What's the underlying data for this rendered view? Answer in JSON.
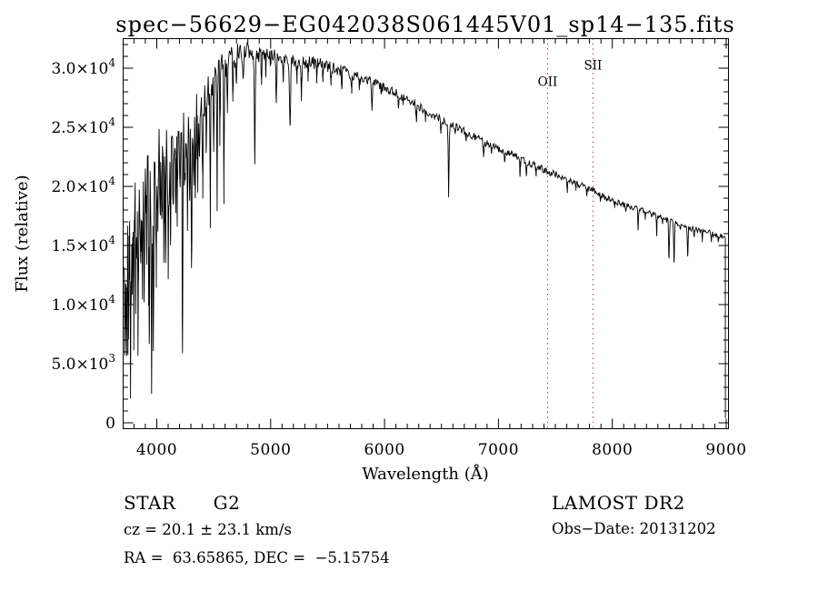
{
  "title": "spec−56629−EG042038S061445V01_sp14−135.fits",
  "annotations": {
    "object_class": "STAR      G2",
    "survey": "LAMOST DR2",
    "cz": "cz = 20.1 ± 23.1 km/s",
    "obs_date": "Obs−Date: 20131202",
    "ra_dec": "RA =  63.65865, DEC =  −5.15754"
  },
  "chart_data": {
    "type": "line",
    "title": "spec−56629−EG042038S061445V01_sp14−135.fits",
    "xlabel": "Wavelength (Å)",
    "ylabel": "Flux (relative)",
    "xlim": [
      3705,
      9020
    ],
    "ylim": [
      -500,
      32500
    ],
    "grid": false,
    "line_color": "#000000",
    "frame_color": "#000000",
    "background": "#ffffff",
    "marker_color": "#8f2222",
    "x_ticks": {
      "major": [
        {
          "value": 4000,
          "label": "4000"
        },
        {
          "value": 5000,
          "label": "5000"
        },
        {
          "value": 6000,
          "label": "6000"
        },
        {
          "value": 7000,
          "label": "7000"
        },
        {
          "value": 8000,
          "label": "8000"
        },
        {
          "value": 9000,
          "label": "9000"
        }
      ],
      "minor_step": 100
    },
    "y_ticks": {
      "major": [
        {
          "value": 0,
          "label": "0"
        },
        {
          "value": 5000,
          "mantissa": "5.0×10",
          "exponent": "3"
        },
        {
          "value": 10000,
          "mantissa": "1.0×10",
          "exponent": "4"
        },
        {
          "value": 15000,
          "mantissa": "1.5×10",
          "exponent": "4"
        },
        {
          "value": 20000,
          "mantissa": "2.0×10",
          "exponent": "4"
        },
        {
          "value": 25000,
          "mantissa": "2.5×10",
          "exponent": "4"
        },
        {
          "value": 30000,
          "mantissa": "3.0×10",
          "exponent": "4"
        }
      ],
      "minor_step": 1000
    },
    "marker_lines": [
      {
        "label": "OII",
        "wavelength": 7432,
        "label_flux": 28500
      },
      {
        "label": "SII",
        "wavelength": 7830,
        "label_flux": 29900
      }
    ],
    "continuum": [
      [
        3714,
        14500
      ],
      [
        3760,
        17500
      ],
      [
        3800,
        19000
      ],
      [
        3860,
        20500
      ],
      [
        3920,
        21500
      ],
      [
        3990,
        22500
      ],
      [
        4080,
        24000
      ],
      [
        4160,
        25200
      ],
      [
        4250,
        25800
      ],
      [
        4330,
        26300
      ],
      [
        4420,
        27600
      ],
      [
        4500,
        29200
      ],
      [
        4570,
        30200
      ],
      [
        4650,
        30800
      ],
      [
        4730,
        31200
      ],
      [
        4800,
        31500
      ],
      [
        4870,
        31300
      ],
      [
        4950,
        31200
      ],
      [
        5050,
        31000
      ],
      [
        5150,
        30800
      ],
      [
        5250,
        30400
      ],
      [
        5350,
        30500
      ],
      [
        5450,
        30300
      ],
      [
        5550,
        30000
      ],
      [
        5650,
        29700
      ],
      [
        5750,
        29300
      ],
      [
        5850,
        29000
      ],
      [
        5950,
        28600
      ],
      [
        6050,
        28100
      ],
      [
        6150,
        27600
      ],
      [
        6250,
        27100
      ],
      [
        6350,
        26500
      ],
      [
        6450,
        25900
      ],
      [
        6550,
        25400
      ],
      [
        6650,
        24900
      ],
      [
        6750,
        24400
      ],
      [
        6850,
        23900
      ],
      [
        6950,
        23400
      ],
      [
        7050,
        23000
      ],
      [
        7150,
        22600
      ],
      [
        7250,
        22100
      ],
      [
        7350,
        21600
      ],
      [
        7450,
        21200
      ],
      [
        7550,
        20800
      ],
      [
        7650,
        20400
      ],
      [
        7750,
        20000
      ],
      [
        7850,
        19600
      ],
      [
        7950,
        19000
      ],
      [
        8050,
        18600
      ],
      [
        8150,
        18300
      ],
      [
        8250,
        18000
      ],
      [
        8350,
        17600
      ],
      [
        8450,
        17300
      ],
      [
        8550,
        16900
      ],
      [
        8650,
        16600
      ],
      [
        8750,
        16300
      ],
      [
        8850,
        16100
      ],
      [
        8950,
        15800
      ],
      [
        8993,
        15600
      ]
    ],
    "absorption_lines": [
      [
        3722,
        8000,
        6
      ],
      [
        3737,
        9800,
        5
      ],
      [
        3752,
        10500,
        5
      ],
      [
        3770,
        8600,
        5
      ],
      [
        3785,
        12000,
        4
      ],
      [
        3798,
        10500,
        5
      ],
      [
        3815,
        12500,
        4
      ],
      [
        3835,
        9800,
        5
      ],
      [
        3860,
        11500,
        4
      ],
      [
        3875,
        14000,
        4
      ],
      [
        3889,
        10200,
        5
      ],
      [
        3912,
        13500,
        4
      ],
      [
        3934,
        7600,
        5
      ],
      [
        3955,
        5300,
        5
      ],
      [
        3970,
        9200,
        5
      ],
      [
        3995,
        14500,
        4
      ],
      [
        4010,
        15200,
        4
      ],
      [
        4030,
        16500,
        4
      ],
      [
        4045,
        16200,
        4
      ],
      [
        4063,
        15800,
        4
      ],
      [
        4078,
        15500,
        4
      ],
      [
        4101,
        13600,
        5
      ],
      [
        4121,
        17500,
        4
      ],
      [
        4144,
        17800,
        4
      ],
      [
        4167,
        19000,
        4
      ],
      [
        4180,
        19500,
        4
      ],
      [
        4205,
        18500,
        4
      ],
      [
        4226,
        6500,
        5
      ],
      [
        4250,
        19500,
        4
      ],
      [
        4270,
        19000,
        4
      ],
      [
        4289,
        18000,
        4
      ],
      [
        4305,
        15500,
        6
      ],
      [
        4325,
        19800,
        4
      ],
      [
        4340,
        19000,
        5
      ],
      [
        4360,
        21000,
        4
      ],
      [
        4375,
        21500,
        4
      ],
      [
        4404,
        20500,
        4
      ],
      [
        4435,
        23500,
        4
      ],
      [
        4470,
        17200,
        4
      ],
      [
        4500,
        23500,
        4
      ],
      [
        4530,
        18200,
        4
      ],
      [
        4555,
        24500,
        4
      ],
      [
        4590,
        19800,
        4
      ],
      [
        4620,
        26000,
        4
      ],
      [
        4668,
        27200,
        4
      ],
      [
        4700,
        28500,
        4
      ],
      [
        4760,
        28800,
        4
      ],
      [
        4861,
        22400,
        5
      ],
      [
        4920,
        29000,
        4
      ],
      [
        4958,
        29500,
        4
      ],
      [
        5000,
        29800,
        3
      ],
      [
        5050,
        27200,
        5
      ],
      [
        5110,
        29000,
        4
      ],
      [
        5170,
        25200,
        7
      ],
      [
        5230,
        28800,
        4
      ],
      [
        5270,
        27600,
        5
      ],
      [
        5330,
        29000,
        4
      ],
      [
        5405,
        28800,
        4
      ],
      [
        5460,
        28900,
        4
      ],
      [
        5530,
        28700,
        4
      ],
      [
        5625,
        28300,
        4
      ],
      [
        5711,
        28000,
        4
      ],
      [
        5780,
        28200,
        4
      ],
      [
        5890,
        26600,
        6
      ],
      [
        5970,
        27600,
        4
      ],
      [
        6122,
        26900,
        4
      ],
      [
        6162,
        26800,
        4
      ],
      [
        6280,
        25100,
        4
      ],
      [
        6360,
        25600,
        4
      ],
      [
        6495,
        24800,
        4
      ],
      [
        6563,
        19400,
        5
      ],
      [
        6620,
        24200,
        3
      ],
      [
        6717,
        23700,
        3
      ],
      [
        6870,
        22300,
        5
      ],
      [
        6940,
        22800,
        3
      ],
      [
        7054,
        22200,
        4
      ],
      [
        7190,
        20900,
        4
      ],
      [
        7245,
        21000,
        4
      ],
      [
        7330,
        20800,
        3
      ],
      [
        7605,
        19600,
        4
      ],
      [
        7680,
        19800,
        3
      ],
      [
        7775,
        19300,
        3
      ],
      [
        7895,
        18700,
        3
      ],
      [
        8020,
        18200,
        3
      ],
      [
        8120,
        17900,
        3
      ],
      [
        8227,
        16300,
        4
      ],
      [
        8290,
        17300,
        3
      ],
      [
        8390,
        16000,
        3
      ],
      [
        8440,
        16800,
        3
      ],
      [
        8498,
        13800,
        5
      ],
      [
        8542,
        13400,
        5
      ],
      [
        8598,
        16200,
        3
      ],
      [
        8662,
        14300,
        5
      ],
      [
        8720,
        15700,
        3
      ],
      [
        8790,
        15500,
        3
      ],
      [
        8870,
        15400,
        3
      ],
      [
        8930,
        15300,
        3
      ]
    ],
    "noise_regions": [
      [
        3714,
        3800,
        4200
      ],
      [
        3800,
        3900,
        3600
      ],
      [
        3900,
        4000,
        3000
      ],
      [
        4000,
        4150,
        2600
      ],
      [
        4150,
        4320,
        2300
      ],
      [
        4320,
        4460,
        1900
      ],
      [
        4460,
        4620,
        1400
      ],
      [
        4620,
        4780,
        1000
      ],
      [
        4780,
        4950,
        800
      ],
      [
        4950,
        5150,
        650
      ],
      [
        5150,
        5450,
        560
      ],
      [
        5450,
        5750,
        480
      ],
      [
        5750,
        6150,
        420
      ],
      [
        6150,
        6550,
        370
      ],
      [
        6550,
        7050,
        330
      ],
      [
        7050,
        7550,
        300
      ],
      [
        7550,
        8050,
        280
      ],
      [
        8050,
        8550,
        260
      ],
      [
        8550,
        8992,
        250
      ]
    ],
    "blue_noise": {
      "below": 4460,
      "downward_bias": 0.12,
      "spike_probability": 0.1,
      "spike_scale": 1.5
    },
    "spectrum_start": 3714,
    "spectrum_end": {
      "wavelength": 8993,
      "drop_to": 400
    },
    "sample_step": 6,
    "noise_seed": 42
  }
}
